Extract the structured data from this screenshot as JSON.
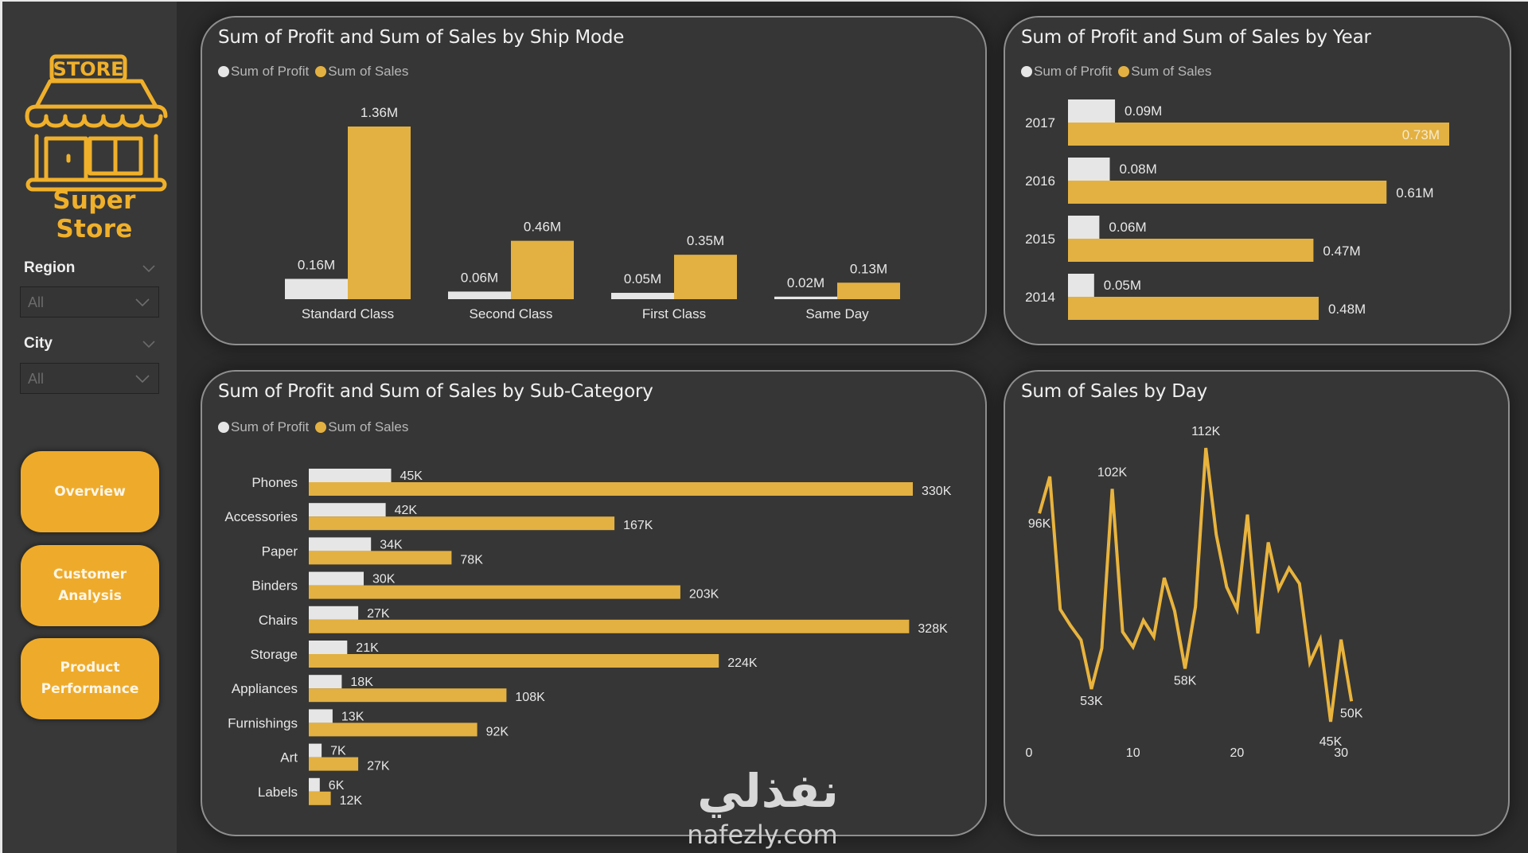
{
  "brand": {
    "logo_sign": "STORE",
    "name": "Super Store",
    "accent": "#F0B02A"
  },
  "filters": [
    {
      "label": "Region",
      "value": "All"
    },
    {
      "label": "City",
      "value": "All"
    }
  ],
  "nav": [
    {
      "label": "Overview"
    },
    {
      "label": "Customer Analysis",
      "lines": [
        "Customer",
        "Analysis"
      ]
    },
    {
      "label": "Product Performance",
      "lines": [
        "Product",
        "Performance"
      ]
    }
  ],
  "colors": {
    "profit": "#E6E6E6",
    "sales": "#E3B142",
    "line": "#E9B43D",
    "text": "#E8E8E8"
  },
  "watermark": {
    "arabic": "نفذلي",
    "latin": "nafezly.com"
  },
  "chart_data": [
    {
      "id": "ship_mode",
      "type": "bar",
      "title": "Sum of Profit and Sum of Sales by Ship Mode",
      "legend": [
        "Sum of Profit",
        "Sum of Sales"
      ],
      "legend_position": "top-left",
      "categories": [
        "Standard Class",
        "Second Class",
        "First Class",
        "Same Day"
      ],
      "series": [
        {
          "name": "Sum of Profit",
          "values": [
            0.16,
            0.06,
            0.05,
            0.02
          ],
          "labels": [
            "0.16M",
            "0.06M",
            "0.05M",
            "0.02M"
          ]
        },
        {
          "name": "Sum of Sales",
          "values": [
            1.36,
            0.46,
            0.35,
            0.13
          ],
          "labels": [
            "1.36M",
            "0.46M",
            "0.35M",
            "0.13M"
          ]
        }
      ],
      "unit": "M",
      "grid": false
    },
    {
      "id": "year",
      "type": "bar",
      "orientation": "horizontal",
      "title": "Sum of Profit and Sum of Sales by Year",
      "legend": [
        "Sum of Profit",
        "Sum of Sales"
      ],
      "legend_position": "top-left",
      "categories": [
        "2017",
        "2016",
        "2015",
        "2014"
      ],
      "series": [
        {
          "name": "Sum of Profit",
          "values": [
            0.09,
            0.08,
            0.06,
            0.05
          ],
          "labels": [
            "0.09M",
            "0.08M",
            "0.06M",
            "0.05M"
          ]
        },
        {
          "name": "Sum of Sales",
          "values": [
            0.73,
            0.61,
            0.47,
            0.48
          ],
          "labels": [
            "0.73M",
            "0.61M",
            "0.47M",
            "0.48M"
          ]
        }
      ],
      "unit": "M",
      "grid": false
    },
    {
      "id": "sub_category",
      "type": "bar",
      "orientation": "horizontal",
      "title": "Sum of Profit and Sum of Sales by Sub-Category",
      "legend": [
        "Sum of Profit",
        "Sum of Sales"
      ],
      "legend_position": "top-left",
      "categories": [
        "Phones",
        "Accessories",
        "Paper",
        "Binders",
        "Chairs",
        "Storage",
        "Appliances",
        "Furnishings",
        "Art",
        "Labels"
      ],
      "series": [
        {
          "name": "Sum of Profit",
          "values": [
            45,
            42,
            34,
            30,
            27,
            21,
            18,
            13,
            7,
            6
          ],
          "labels": [
            "45K",
            "42K",
            "34K",
            "30K",
            "27K",
            "21K",
            "18K",
            "13K",
            "7K",
            "6K"
          ]
        },
        {
          "name": "Sum of Sales",
          "values": [
            330,
            167,
            78,
            203,
            328,
            224,
            108,
            92,
            27,
            12
          ],
          "labels": [
            "330K",
            "167K",
            "78K",
            "203K",
            "328K",
            "224K",
            "108K",
            "92K",
            "27K",
            "12K"
          ]
        }
      ],
      "unit": "K",
      "grid": false
    },
    {
      "id": "day",
      "type": "line",
      "title": "Sum of Sales by Day",
      "xlabel": "",
      "ylabel": "",
      "x": [
        1,
        2,
        3,
        4,
        5,
        6,
        7,
        8,
        9,
        10,
        11,
        12,
        13,
        14,
        15,
        16,
        17,
        18,
        19,
        20,
        21,
        22,
        23,
        24,
        25,
        26,
        27,
        28,
        29,
        30,
        31
      ],
      "series": [
        {
          "name": "Sum of Sales",
          "values": [
            96,
            105,
            72.5,
            68.5,
            65,
            53,
            63,
            102,
            67,
            63.3,
            69.8,
            65.8,
            80.2,
            72.1,
            58,
            73.1,
            112,
            90.8,
            78,
            72.5,
            95.7,
            66.6,
            88.9,
            77.5,
            82.6,
            78.8,
            59.5,
            65.1,
            45,
            65.1,
            50
          ]
        }
      ],
      "annotations": [
        {
          "x": 1,
          "label": "96K"
        },
        {
          "x": 6,
          "label": "53K"
        },
        {
          "x": 8,
          "label": "102K"
        },
        {
          "x": 15,
          "label": "58K"
        },
        {
          "x": 17,
          "label": "112K"
        },
        {
          "x": 29,
          "label": "45K"
        },
        {
          "x": 31,
          "label": "50K"
        }
      ],
      "xticks": [
        0,
        10,
        20,
        30
      ],
      "xlim": [
        0,
        33
      ],
      "ylim": [
        45,
        112
      ],
      "unit": "K",
      "grid": false
    }
  ]
}
